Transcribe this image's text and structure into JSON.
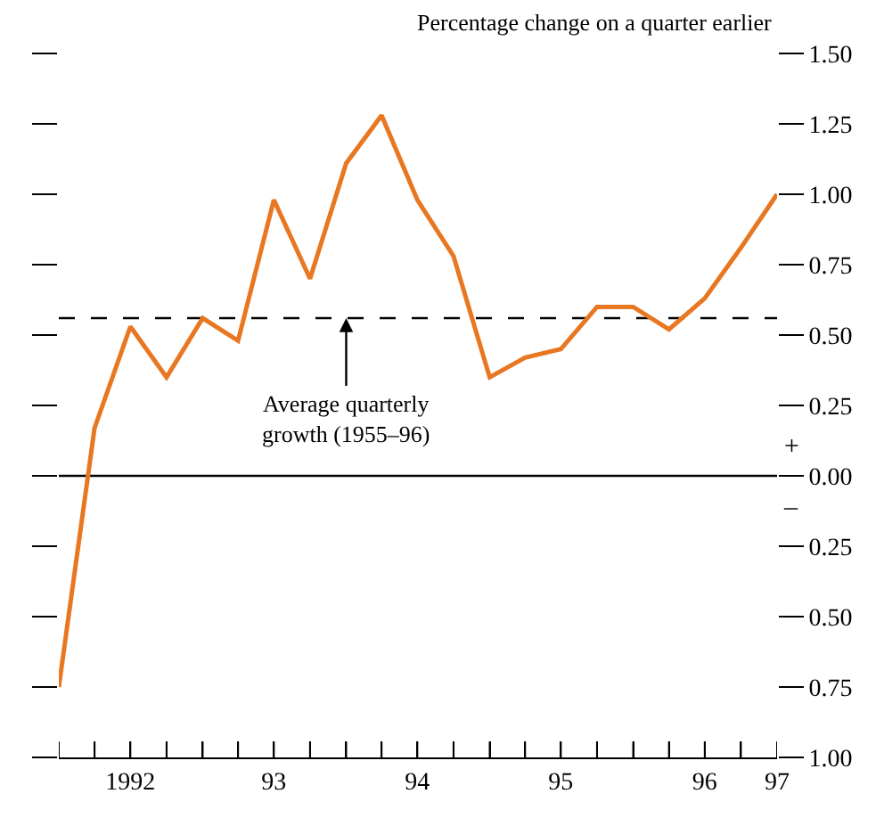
{
  "chart_data": {
    "type": "line",
    "ylabel": "Percentage change on a quarter earlier",
    "x": [
      "1992-01",
      "1992-04",
      "1992-07",
      "1992-10",
      "1993-01",
      "1993-04",
      "1993-07",
      "1993-10",
      "1994-01",
      "1994-04",
      "1994-07",
      "1994-10",
      "1995-01",
      "1995-04",
      "1995-07",
      "1995-10",
      "1996-01",
      "1996-04",
      "1996-07",
      "1996-10",
      "1997-01"
    ],
    "series": [
      {
        "color": "#e87722",
        "values": [
          -0.75,
          0.17,
          0.53,
          0.35,
          0.56,
          0.48,
          0.98,
          0.7,
          1.11,
          1.28,
          0.98,
          0.78,
          0.35,
          0.42,
          0.45,
          0.6,
          0.6,
          0.52,
          0.63,
          0.81,
          1.0
        ]
      }
    ],
    "xlim": [
      "1992-01",
      "1997-01"
    ],
    "xticks": [
      {
        "value": "1992-01",
        "label": null
      },
      {
        "value": "1992-04",
        "label": null
      },
      {
        "value": "1992-07",
        "label": "1992"
      },
      {
        "value": "1992-10",
        "label": null
      },
      {
        "value": "1993-01",
        "label": null
      },
      {
        "value": "1993-04",
        "label": null
      },
      {
        "value": "1993-07",
        "label": "93"
      },
      {
        "value": "1993-10",
        "label": null
      },
      {
        "value": "1994-01",
        "label": null
      },
      {
        "value": "1994-04",
        "label": null
      },
      {
        "value": "1994-07",
        "label": "94"
      },
      {
        "value": "1994-10",
        "label": null
      },
      {
        "value": "1995-01",
        "label": null
      },
      {
        "value": "1995-04",
        "label": null
      },
      {
        "value": "1995-07",
        "label": "95"
      },
      {
        "value": "1995-10",
        "label": null
      },
      {
        "value": "1996-01",
        "label": null
      },
      {
        "value": "1996-04",
        "label": null
      },
      {
        "value": "1996-07",
        "label": "96"
      },
      {
        "value": "1996-10",
        "label": null
      },
      {
        "value": "1997-01",
        "label": "97"
      }
    ],
    "ylim": [
      -1.0,
      1.5
    ],
    "yticks": [
      {
        "value": -1.0,
        "label": "1.00"
      },
      {
        "value": -0.75,
        "label": "0.75"
      },
      {
        "value": -0.5,
        "label": "0.50"
      },
      {
        "value": -0.25,
        "label": "0.25"
      },
      {
        "value": 0,
        "label": "0.00"
      },
      {
        "value": 0.25,
        "label": "0.25"
      },
      {
        "value": 0.5,
        "label": "0.50"
      },
      {
        "value": 0.75,
        "label": "0.75"
      },
      {
        "value": 1.0,
        "label": "1.00"
      },
      {
        "value": 1.25,
        "label": "1.25"
      },
      {
        "value": 1.5,
        "label": "1.50"
      }
    ],
    "ref_lines": [
      {
        "axis": "y",
        "value": 0.56,
        "color": "#000000",
        "line_style": "dashed"
      },
      {
        "axis": "y",
        "value": 0,
        "color": "#000000",
        "line_style": "solid"
      }
    ],
    "annotations": [
      {
        "text": "Average quarterly\ngrowth (1955–96)",
        "x": "1994-01",
        "y": 0.56
      },
      "+",
      "–"
    ],
    "grid": false,
    "marker": "none",
    "line_style": "solid"
  }
}
